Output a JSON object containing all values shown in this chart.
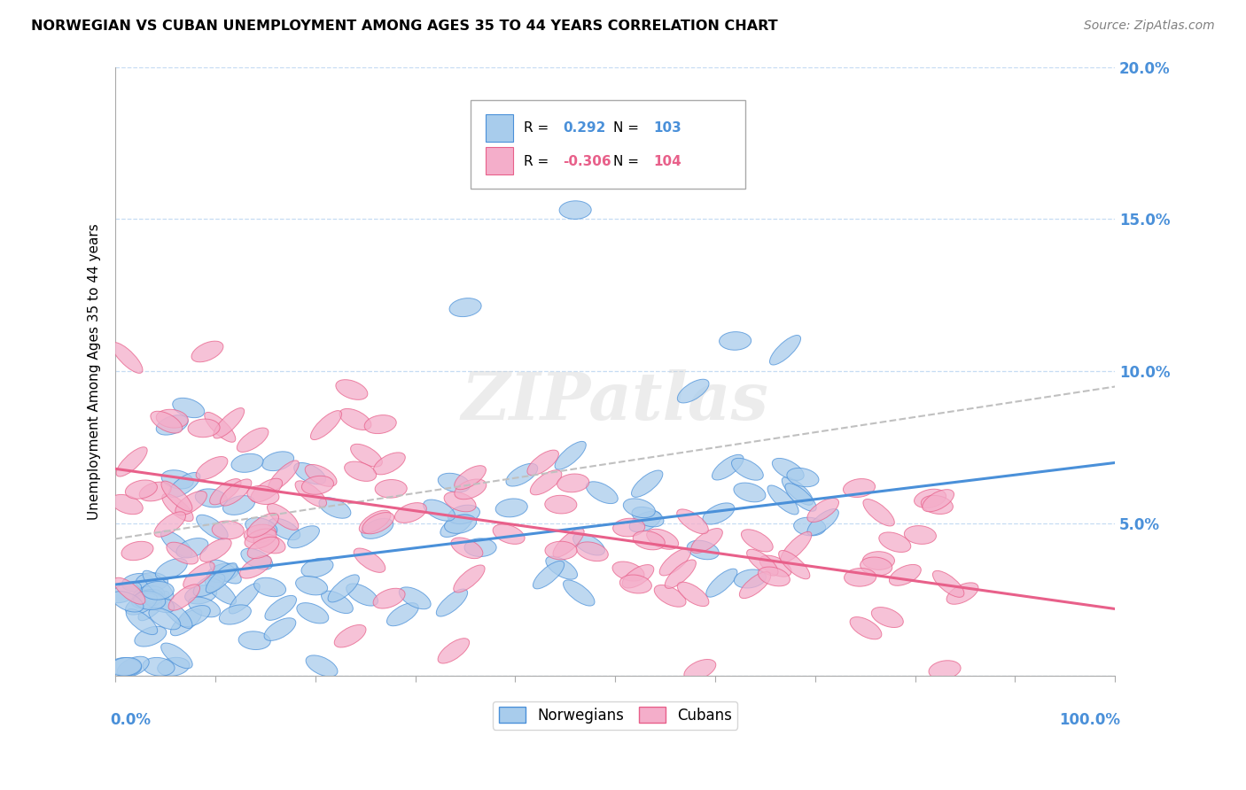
{
  "title": "NORWEGIAN VS CUBAN UNEMPLOYMENT AMONG AGES 35 TO 44 YEARS CORRELATION CHART",
  "source": "Source: ZipAtlas.com",
  "ylabel": "Unemployment Among Ages 35 to 44 years",
  "norwegian_R": 0.292,
  "norwegian_N": 103,
  "cuban_R": -0.306,
  "cuban_N": 104,
  "norwegian_scatter_color": "#A8CCEC",
  "cuban_scatter_color": "#F4AECA",
  "norwegian_line_color": "#4A90D9",
  "cuban_line_color": "#E8608A",
  "trend_line_color": "#C0C0C0",
  "xlim": [
    0,
    100
  ],
  "ylim": [
    0,
    20
  ],
  "yticks": [
    0,
    5,
    10,
    15,
    20
  ],
  "ytick_labels": [
    "",
    "5.0%",
    "10.0%",
    "15.0%",
    "20.0%"
  ],
  "watermark": "ZIPatlas",
  "background_color": "#FFFFFF",
  "seed": 42,
  "nor_line_start_y": 3.0,
  "nor_line_end_y": 7.0,
  "cub_line_start_y": 6.8,
  "cub_line_end_y": 2.2,
  "gray_line_start_y": 4.5,
  "gray_line_end_y": 9.5
}
